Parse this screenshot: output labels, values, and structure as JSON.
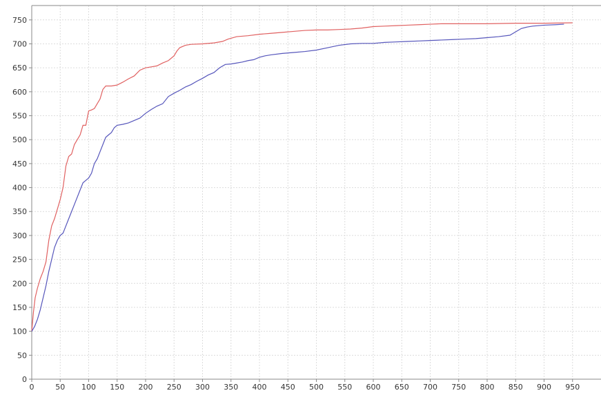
{
  "chart_data": {
    "type": "line",
    "title": "",
    "xlabel": "",
    "ylabel": "",
    "xlim": [
      0,
      1000
    ],
    "ylim": [
      0,
      780
    ],
    "grid": true,
    "colors": {
      "background": "#ffffff",
      "grid": "#dcdcdc",
      "axis": "#888888",
      "text": "#333333"
    },
    "x_ticks": [
      0,
      50,
      100,
      150,
      200,
      250,
      300,
      350,
      400,
      450,
      500,
      550,
      600,
      650,
      700,
      750,
      800,
      850,
      900,
      950
    ],
    "y_ticks": [
      0,
      50,
      100,
      150,
      200,
      250,
      300,
      350,
      400,
      450,
      500,
      550,
      600,
      650,
      700,
      750
    ],
    "series": [
      {
        "color": "#e06060",
        "points": [
          [
            0,
            100
          ],
          [
            3,
            140
          ],
          [
            6,
            170
          ],
          [
            10,
            190
          ],
          [
            15,
            210
          ],
          [
            20,
            225
          ],
          [
            25,
            245
          ],
          [
            30,
            290
          ],
          [
            35,
            320
          ],
          [
            40,
            335
          ],
          [
            45,
            355
          ],
          [
            50,
            375
          ],
          [
            55,
            400
          ],
          [
            60,
            445
          ],
          [
            65,
            465
          ],
          [
            70,
            470
          ],
          [
            75,
            490
          ],
          [
            80,
            500
          ],
          [
            85,
            510
          ],
          [
            90,
            530
          ],
          [
            95,
            530
          ],
          [
            100,
            560
          ],
          [
            105,
            562
          ],
          [
            110,
            565
          ],
          [
            115,
            575
          ],
          [
            120,
            585
          ],
          [
            125,
            605
          ],
          [
            130,
            612
          ],
          [
            140,
            612
          ],
          [
            150,
            614
          ],
          [
            160,
            620
          ],
          [
            170,
            627
          ],
          [
            180,
            633
          ],
          [
            190,
            645
          ],
          [
            200,
            650
          ],
          [
            210,
            652
          ],
          [
            220,
            654
          ],
          [
            230,
            660
          ],
          [
            240,
            665
          ],
          [
            250,
            675
          ],
          [
            255,
            685
          ],
          [
            260,
            692
          ],
          [
            270,
            697
          ],
          [
            280,
            699
          ],
          [
            300,
            700
          ],
          [
            320,
            702
          ],
          [
            335,
            705
          ],
          [
            345,
            710
          ],
          [
            360,
            715
          ],
          [
            380,
            717
          ],
          [
            400,
            720
          ],
          [
            420,
            722
          ],
          [
            440,
            724
          ],
          [
            460,
            726
          ],
          [
            480,
            728
          ],
          [
            500,
            729
          ],
          [
            520,
            729
          ],
          [
            540,
            730
          ],
          [
            560,
            731
          ],
          [
            580,
            733
          ],
          [
            600,
            736
          ],
          [
            620,
            737
          ],
          [
            640,
            738
          ],
          [
            660,
            739
          ],
          [
            680,
            740
          ],
          [
            700,
            741
          ],
          [
            720,
            742
          ],
          [
            750,
            742
          ],
          [
            800,
            742
          ],
          [
            850,
            743
          ],
          [
            900,
            743
          ],
          [
            950,
            744
          ]
        ]
      },
      {
        "color": "#5555bb",
        "points": [
          [
            0,
            100
          ],
          [
            5,
            110
          ],
          [
            10,
            125
          ],
          [
            15,
            145
          ],
          [
            20,
            170
          ],
          [
            25,
            195
          ],
          [
            30,
            225
          ],
          [
            35,
            250
          ],
          [
            40,
            275
          ],
          [
            45,
            290
          ],
          [
            50,
            300
          ],
          [
            55,
            305
          ],
          [
            60,
            320
          ],
          [
            65,
            335
          ],
          [
            70,
            350
          ],
          [
            75,
            365
          ],
          [
            80,
            380
          ],
          [
            85,
            395
          ],
          [
            90,
            410
          ],
          [
            95,
            415
          ],
          [
            100,
            420
          ],
          [
            105,
            430
          ],
          [
            110,
            450
          ],
          [
            115,
            460
          ],
          [
            120,
            475
          ],
          [
            125,
            490
          ],
          [
            130,
            505
          ],
          [
            135,
            510
          ],
          [
            140,
            515
          ],
          [
            145,
            525
          ],
          [
            150,
            530
          ],
          [
            160,
            532
          ],
          [
            170,
            535
          ],
          [
            180,
            540
          ],
          [
            190,
            545
          ],
          [
            200,
            555
          ],
          [
            210,
            563
          ],
          [
            220,
            570
          ],
          [
            230,
            575
          ],
          [
            240,
            590
          ],
          [
            250,
            597
          ],
          [
            260,
            603
          ],
          [
            270,
            610
          ],
          [
            280,
            615
          ],
          [
            290,
            622
          ],
          [
            300,
            628
          ],
          [
            310,
            635
          ],
          [
            320,
            640
          ],
          [
            330,
            650
          ],
          [
            340,
            657
          ],
          [
            350,
            658
          ],
          [
            360,
            660
          ],
          [
            370,
            662
          ],
          [
            380,
            665
          ],
          [
            390,
            667
          ],
          [
            400,
            672
          ],
          [
            410,
            675
          ],
          [
            420,
            677
          ],
          [
            440,
            680
          ],
          [
            460,
            682
          ],
          [
            480,
            684
          ],
          [
            500,
            687
          ],
          [
            520,
            692
          ],
          [
            540,
            697
          ],
          [
            560,
            700
          ],
          [
            580,
            701
          ],
          [
            600,
            701
          ],
          [
            620,
            703
          ],
          [
            640,
            704
          ],
          [
            660,
            705
          ],
          [
            680,
            706
          ],
          [
            700,
            707
          ],
          [
            720,
            708
          ],
          [
            740,
            709
          ],
          [
            760,
            710
          ],
          [
            780,
            711
          ],
          [
            800,
            713
          ],
          [
            820,
            715
          ],
          [
            840,
            718
          ],
          [
            850,
            725
          ],
          [
            860,
            732
          ],
          [
            870,
            735
          ],
          [
            880,
            737
          ],
          [
            900,
            739
          ],
          [
            920,
            740
          ],
          [
            935,
            741
          ]
        ]
      }
    ]
  }
}
